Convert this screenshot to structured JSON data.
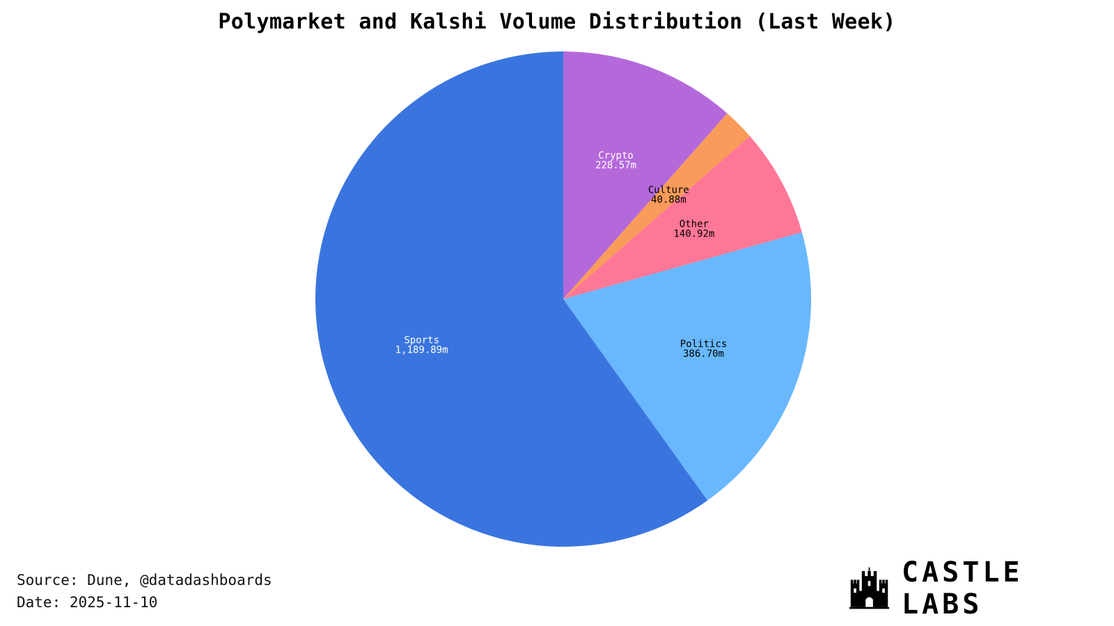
{
  "chart_data": {
    "type": "pie",
    "title": "Polymarket and Kalshi Volume Distribution (Last Week)",
    "unit": "m",
    "slices": [
      {
        "label": "Crypto",
        "value": 228.57,
        "display": "228.57m",
        "color": "#B469DB",
        "text_color": "#ffffff"
      },
      {
        "label": "Culture",
        "value": 40.88,
        "display": "40.88m",
        "color": "#F99B5A",
        "text_color": "#000000"
      },
      {
        "label": "Other",
        "value": 140.92,
        "display": "140.92m",
        "color": "#FF7796",
        "text_color": "#000000"
      },
      {
        "label": "Politics",
        "value": 386.7,
        "display": "386.70m",
        "color": "#69B8FE",
        "text_color": "#000000"
      },
      {
        "label": "Sports",
        "value": 1189.89,
        "display": "1,189.89m",
        "color": "#3A75DF",
        "text_color": "#ffffff"
      }
    ],
    "start_direction": "top",
    "direction": "clockwise",
    "legend": false
  },
  "footer": {
    "source": "Source: Dune, @datadashboards",
    "date": "Date: 2025-11-10"
  },
  "logo": {
    "text": "CASTLE LABS",
    "icon": "castle-icon"
  }
}
